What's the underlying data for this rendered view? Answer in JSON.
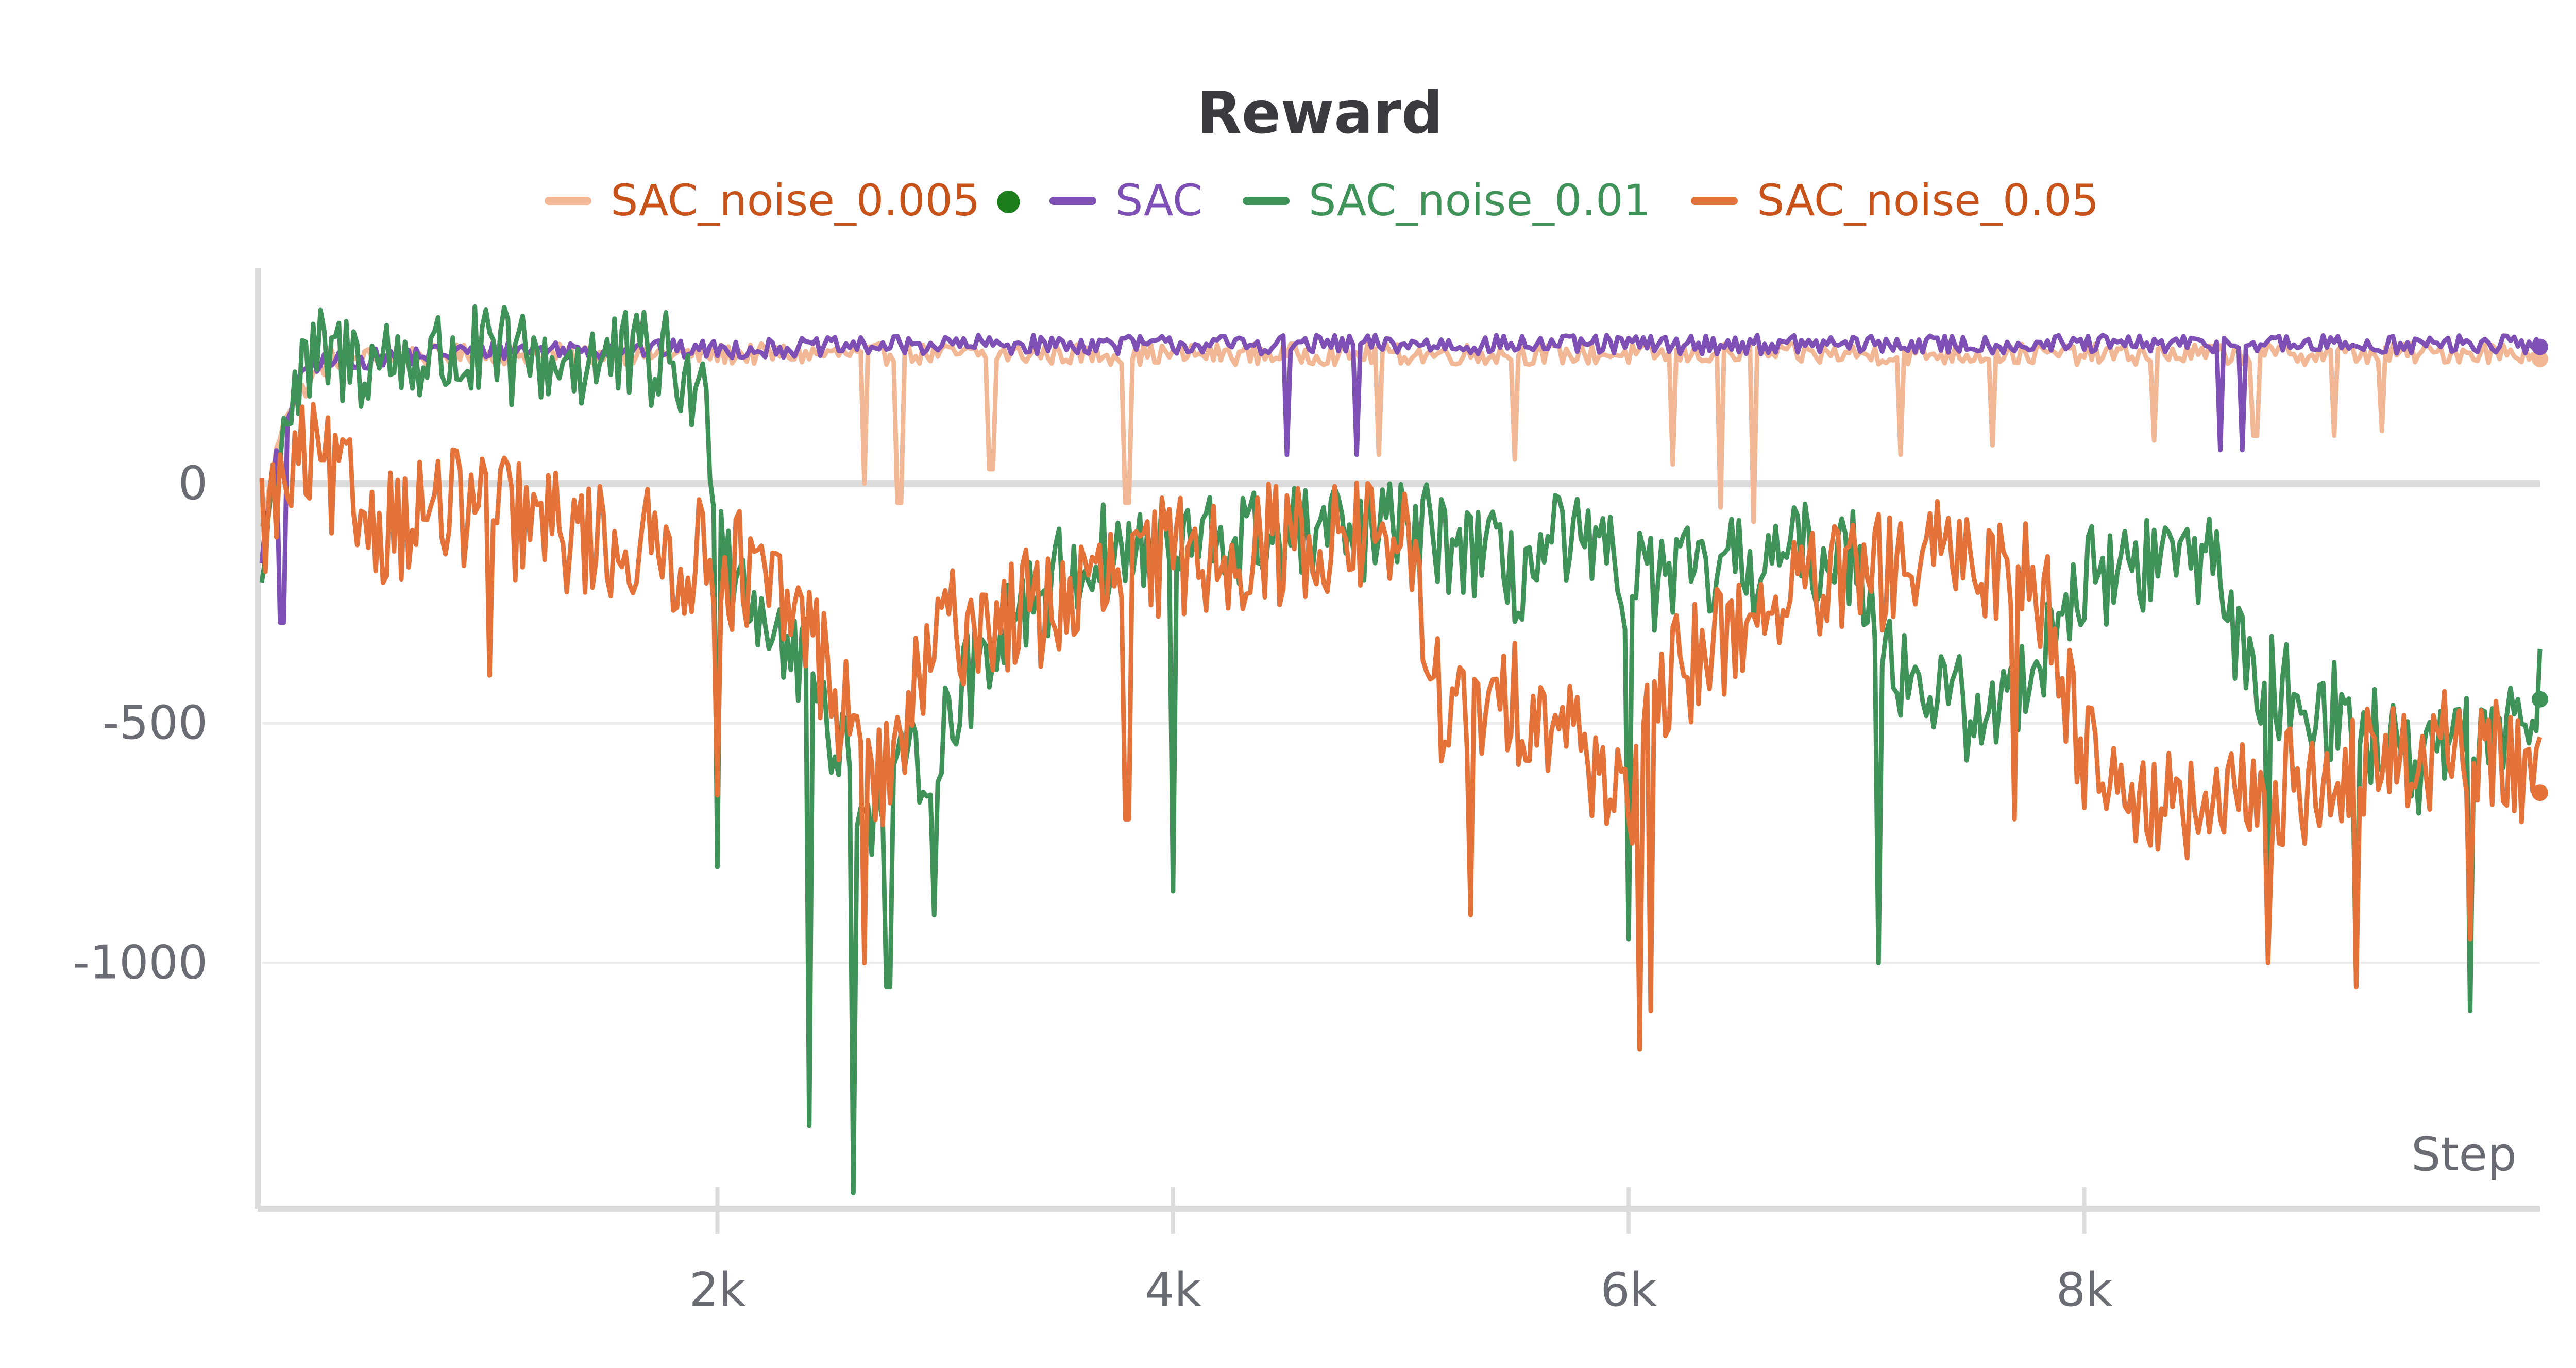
{
  "chart_data": {
    "type": "line",
    "title": "Reward",
    "xlabel": "Step",
    "ylabel": "",
    "xlim": [
      0,
      10000
    ],
    "ylim": [
      -1500,
      450
    ],
    "x_ticks": [
      2000,
      4000,
      6000,
      8000
    ],
    "x_tick_labels": [
      "2k",
      "4k",
      "6k",
      "8k"
    ],
    "y_ticks": [
      0,
      -500,
      -1000
    ],
    "y_tick_labels": [
      "0",
      "-500",
      "-1000"
    ],
    "grid": true,
    "legend_position": "top-center",
    "series": [
      {
        "name": "SAC_noise_0.005",
        "color": "#f2b896",
        "label_color": "#c8531a",
        "marker_after_label": true,
        "marker_color": "#1b7d1b",
        "knots": [
          [
            0,
            -100
          ],
          [
            100,
            150
          ],
          [
            300,
            260
          ],
          [
            1000,
            270
          ],
          [
            2000,
            270
          ],
          [
            3000,
            270
          ],
          [
            4000,
            270
          ],
          [
            6000,
            270
          ],
          [
            8000,
            270
          ],
          [
            9000,
            270
          ],
          [
            10000,
            275
          ]
        ],
        "noise": 22,
        "dips": [
          [
            2650,
            0
          ],
          [
            2800,
            -40
          ],
          [
            3200,
            30
          ],
          [
            3800,
            -40
          ],
          [
            4900,
            60
          ],
          [
            5500,
            50
          ],
          [
            6200,
            40
          ],
          [
            6400,
            -50
          ],
          [
            6550,
            -80
          ],
          [
            7200,
            60
          ],
          [
            7600,
            80
          ],
          [
            8300,
            90
          ],
          [
            8750,
            100
          ],
          [
            9100,
            100
          ],
          [
            9300,
            110
          ]
        ],
        "endpoint": 260
      },
      {
        "name": "SAC",
        "color": "#7e4fb5",
        "label_color": "#7e4fb5",
        "knots": [
          [
            0,
            -150
          ],
          [
            80,
            100
          ],
          [
            200,
            250
          ],
          [
            1000,
            280
          ],
          [
            2000,
            280
          ],
          [
            3000,
            290
          ],
          [
            4000,
            290
          ],
          [
            6000,
            290
          ],
          [
            8000,
            290
          ],
          [
            10000,
            290
          ]
        ],
        "noise": 20,
        "dips": [
          [
            90,
            -290
          ],
          [
            4500,
            60
          ],
          [
            4800,
            60
          ],
          [
            8600,
            70
          ],
          [
            8700,
            70
          ]
        ],
        "endpoint": 285
      },
      {
        "name": "SAC_noise_0.01",
        "color": "#3f9258",
        "label_color": "#3f9258",
        "knots": [
          [
            0,
            -200
          ],
          [
            100,
            150
          ],
          [
            250,
            260
          ],
          [
            1000,
            260
          ],
          [
            1800,
            250
          ],
          [
            1950,
            150
          ],
          [
            2050,
            -150
          ],
          [
            2400,
            -400
          ],
          [
            2700,
            -700
          ],
          [
            3000,
            -500
          ],
          [
            3300,
            -250
          ],
          [
            3700,
            -150
          ],
          [
            4200,
            -120
          ],
          [
            5000,
            -100
          ],
          [
            5300,
            -130
          ],
          [
            5500,
            -200
          ],
          [
            5700,
            -120
          ],
          [
            6000,
            -200
          ],
          [
            6300,
            -200
          ],
          [
            6700,
            -150
          ],
          [
            7000,
            -150
          ],
          [
            7200,
            -400
          ],
          [
            7600,
            -500
          ],
          [
            8000,
            -200
          ],
          [
            8400,
            -150
          ],
          [
            8600,
            -150
          ],
          [
            8700,
            -400
          ],
          [
            9000,
            -450
          ],
          [
            9500,
            -600
          ],
          [
            10000,
            -450
          ]
        ],
        "noise": 110,
        "dips": [
          [
            2000,
            -800
          ],
          [
            2400,
            -1340
          ],
          [
            2600,
            -1480
          ],
          [
            2750,
            -1050
          ],
          [
            2950,
            -900
          ],
          [
            4000,
            -850
          ],
          [
            6000,
            -950
          ],
          [
            7100,
            -1000
          ],
          [
            8800,
            -900
          ],
          [
            9200,
            -1050
          ],
          [
            9700,
            -1100
          ]
        ],
        "endpoint": -450
      },
      {
        "name": "SAC_noise_0.05",
        "color": "#e57339",
        "label_color": "#c8531a",
        "knots": [
          [
            0,
            -80
          ],
          [
            200,
            50
          ],
          [
            500,
            -80
          ],
          [
            900,
            -50
          ],
          [
            1300,
            -100
          ],
          [
            1800,
            -150
          ],
          [
            2100,
            -180
          ],
          [
            2400,
            -300
          ],
          [
            2700,
            -650
          ],
          [
            3000,
            -300
          ],
          [
            3500,
            -250
          ],
          [
            4000,
            -150
          ],
          [
            5000,
            -100
          ],
          [
            5200,
            -500
          ],
          [
            5600,
            -450
          ],
          [
            6000,
            -650
          ],
          [
            6200,
            -400
          ],
          [
            6600,
            -250
          ],
          [
            7000,
            -200
          ],
          [
            7500,
            -150
          ],
          [
            7800,
            -200
          ],
          [
            8000,
            -550
          ],
          [
            8400,
            -700
          ],
          [
            8800,
            -650
          ],
          [
            9200,
            -600
          ],
          [
            9600,
            -550
          ],
          [
            10000,
            -600
          ]
        ],
        "noise": 130,
        "dips": [
          [
            1000,
            -400
          ],
          [
            2000,
            -650
          ],
          [
            2650,
            -1000
          ],
          [
            3800,
            -700
          ],
          [
            5300,
            -900
          ],
          [
            6050,
            -1180
          ],
          [
            6100,
            -1100
          ],
          [
            7700,
            -700
          ],
          [
            8800,
            -1000
          ],
          [
            9200,
            -1050
          ],
          [
            9700,
            -950
          ]
        ],
        "endpoint": -645
      }
    ]
  }
}
